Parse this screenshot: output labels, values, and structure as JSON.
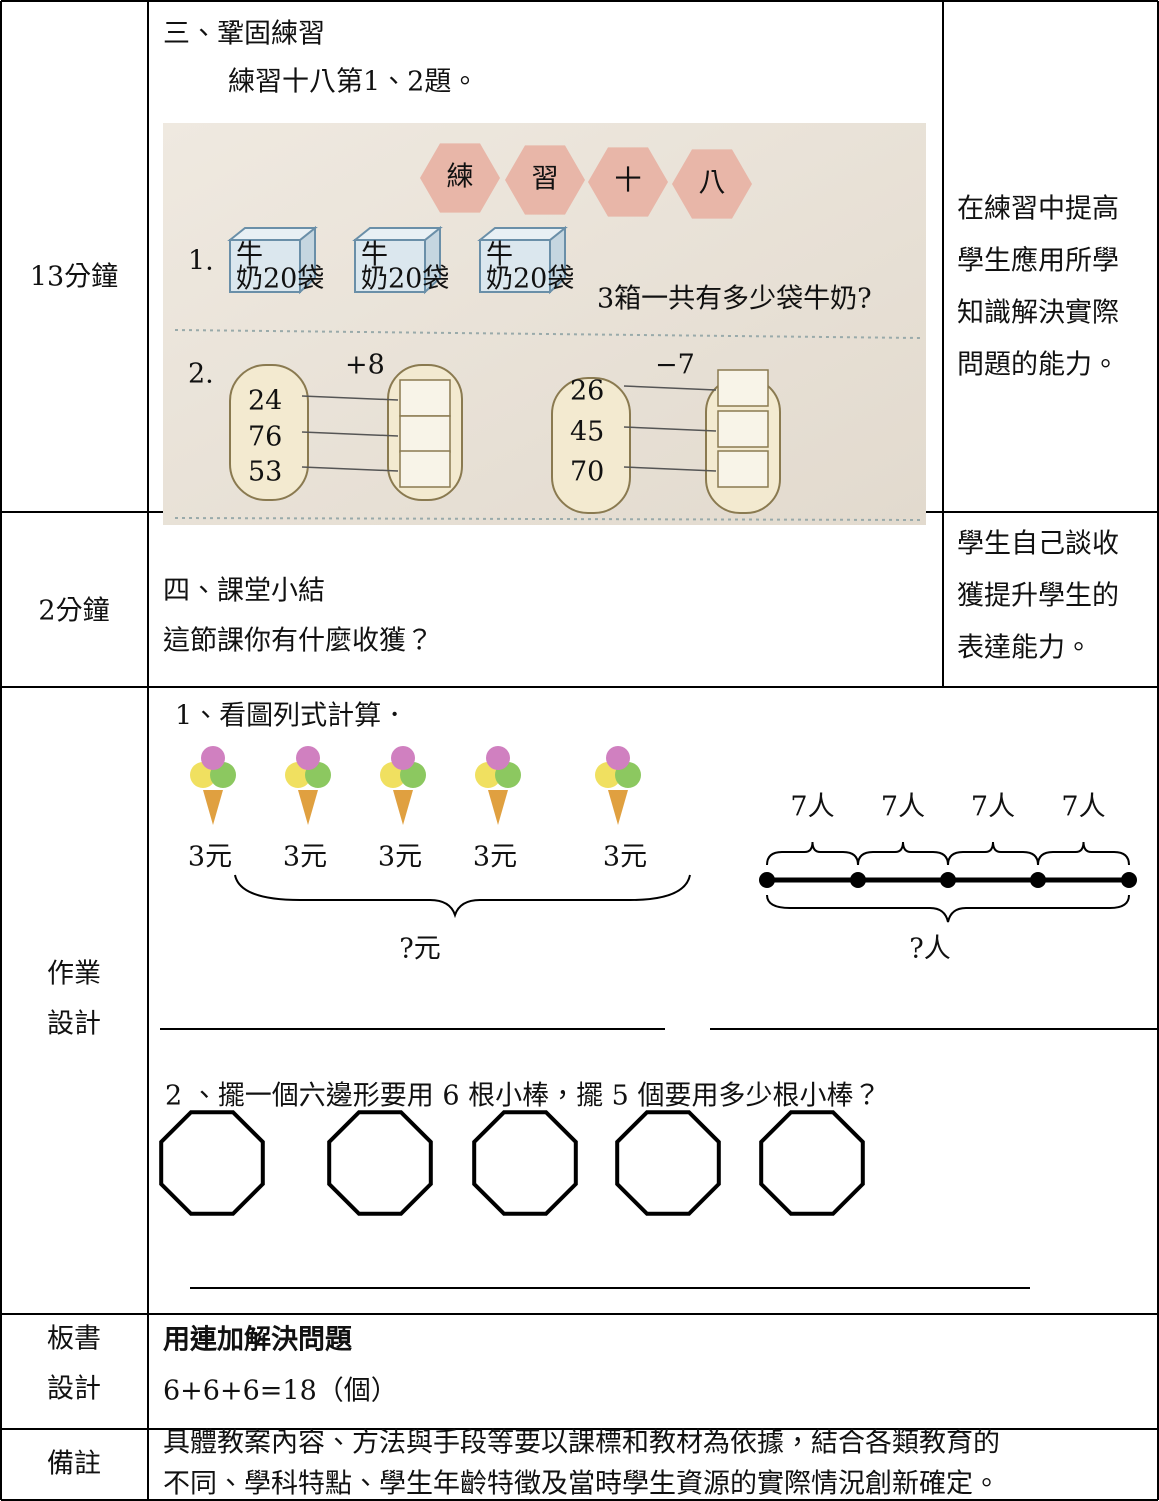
{
  "rows": [
    {
      "time": "13分鐘",
      "heading": "三、鞏固練習",
      "detail": "練習十八第1、2題。",
      "purpose": [
        "在練習中提高",
        "學生應用所學",
        "知識解決實際",
        "問題的能力。"
      ]
    },
    {
      "time": "2分鐘",
      "heading": "四、課堂小結",
      "detail": "這節課你有什麼收獲？",
      "purpose": [
        "學生自己談收",
        "獲提升學生的",
        "表達能力。"
      ]
    }
  ],
  "textbook": {
    "banner": [
      "練",
      "習",
      "十",
      "八"
    ],
    "q1_number": "1.",
    "boxes": [
      {
        "top": "牛",
        "bottom": "奶20袋"
      },
      {
        "top": "牛",
        "bottom": "奶20袋"
      },
      {
        "top": "牛",
        "bottom": "奶20袋"
      }
    ],
    "q1_text": "3箱一共有多少袋牛奶?",
    "q2_number": "2.",
    "groups": [
      {
        "op": "+8",
        "numbers": [
          "24",
          "76",
          "53"
        ]
      },
      {
        "op": "−7",
        "numbers": [
          "26",
          "45",
          "70"
        ]
      }
    ]
  },
  "homework": {
    "label": [
      "作業",
      "設計"
    ],
    "q1": "1、看圖列式計算．",
    "prices": [
      "3元",
      "3元",
      "3元",
      "3元",
      "3元"
    ],
    "price_total": "?元",
    "groups": [
      "7人",
      "7人",
      "7人",
      "7人"
    ],
    "group_total": "?人",
    "q2": "2 、擺一個六邊形要用 6 根小棒，擺 5 個要用多少根小棒？"
  },
  "board": {
    "label": [
      "板書",
      "設計"
    ],
    "title": "用連加解決問題",
    "content": "6+6+6=18（個）"
  },
  "notes": {
    "label": "備註",
    "lines": [
      "具體教案內容、方法與手段等要以課標和教材為依據，結合各類教育的",
      "不同、學科特點、學生年齡特徵及當時學生資源的實際情況創新確定。"
    ]
  }
}
